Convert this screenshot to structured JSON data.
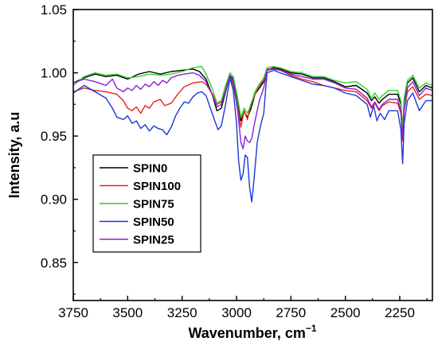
{
  "chart_data": {
    "type": "line",
    "xlabel": "Wavenumber, cm",
    "xlabel_sup": "−1",
    "ylabel": "Intensity, a.u",
    "xlim": [
      3750,
      2100
    ],
    "ylim": [
      0.82,
      1.05
    ],
    "x_reversed": true,
    "xticks": [
      3750,
      3500,
      3250,
      3000,
      2750,
      2500,
      2250
    ],
    "xtick_labels": [
      "3750",
      "3500",
      "3250",
      "3000",
      "2750",
      "2500",
      "2250"
    ],
    "yticks": [
      0.85,
      0.9,
      0.95,
      1.0,
      1.05
    ],
    "ytick_labels": [
      "0.85",
      "0.90",
      "0.95",
      "1.00",
      "1.05"
    ],
    "grid": false,
    "legend_position": "lower-left",
    "series": [
      {
        "name": "SPIN0",
        "color": "#000000",
        "points": [
          [
            3750,
            0.992
          ],
          [
            3700,
            0.996
          ],
          [
            3650,
            0.999
          ],
          [
            3600,
            0.997
          ],
          [
            3550,
            0.998
          ],
          [
            3500,
            0.995
          ],
          [
            3450,
            0.999
          ],
          [
            3400,
            1.001
          ],
          [
            3350,
            0.999
          ],
          [
            3300,
            1.001
          ],
          [
            3250,
            1.002
          ],
          [
            3200,
            1.003
          ],
          [
            3170,
            1.001
          ],
          [
            3140,
            0.995
          ],
          [
            3110,
            0.982
          ],
          [
            3090,
            0.97
          ],
          [
            3070,
            0.972
          ],
          [
            3050,
            0.985
          ],
          [
            3030,
            0.998
          ],
          [
            3015,
            0.995
          ],
          [
            2995,
            0.978
          ],
          [
            2980,
            0.962
          ],
          [
            2965,
            0.969
          ],
          [
            2950,
            0.965
          ],
          [
            2935,
            0.971
          ],
          [
            2915,
            0.983
          ],
          [
            2895,
            0.988
          ],
          [
            2875,
            0.993
          ],
          [
            2860,
            1.002
          ],
          [
            2830,
            1.004
          ],
          [
            2800,
            1.003
          ],
          [
            2750,
            1.0
          ],
          [
            2700,
            0.999
          ],
          [
            2650,
            0.996
          ],
          [
            2600,
            0.996
          ],
          [
            2550,
            0.993
          ],
          [
            2500,
            0.989
          ],
          [
            2450,
            0.99
          ],
          [
            2400,
            0.984
          ],
          [
            2380,
            0.978
          ],
          [
            2365,
            0.981
          ],
          [
            2345,
            0.976
          ],
          [
            2330,
            0.979
          ],
          [
            2300,
            0.983
          ],
          [
            2260,
            0.983
          ],
          [
            2245,
            0.975
          ],
          [
            2237,
            0.951
          ],
          [
            2230,
            0.978
          ],
          [
            2215,
            0.992
          ],
          [
            2190,
            0.996
          ],
          [
            2160,
            0.985
          ],
          [
            2130,
            0.99
          ],
          [
            2100,
            0.988
          ]
        ]
      },
      {
        "name": "SPIN100",
        "color": "#e8231b",
        "points": [
          [
            3750,
            0.985
          ],
          [
            3700,
            0.988
          ],
          [
            3650,
            0.986
          ],
          [
            3600,
            0.985
          ],
          [
            3550,
            0.983
          ],
          [
            3520,
            0.978
          ],
          [
            3500,
            0.972
          ],
          [
            3480,
            0.97
          ],
          [
            3460,
            0.973
          ],
          [
            3440,
            0.968
          ],
          [
            3420,
            0.974
          ],
          [
            3400,
            0.972
          ],
          [
            3380,
            0.977
          ],
          [
            3350,
            0.979
          ],
          [
            3330,
            0.974
          ],
          [
            3300,
            0.976
          ],
          [
            3270,
            0.983
          ],
          [
            3240,
            0.989
          ],
          [
            3200,
            0.992
          ],
          [
            3160,
            0.993
          ],
          [
            3140,
            0.991
          ],
          [
            3110,
            0.983
          ],
          [
            3090,
            0.975
          ],
          [
            3070,
            0.977
          ],
          [
            3050,
            0.989
          ],
          [
            3030,
            0.998
          ],
          [
            3015,
            0.99
          ],
          [
            2995,
            0.972
          ],
          [
            2980,
            0.957
          ],
          [
            2965,
            0.97
          ],
          [
            2950,
            0.963
          ],
          [
            2935,
            0.975
          ],
          [
            2915,
            0.983
          ],
          [
            2895,
            0.99
          ],
          [
            2875,
            0.994
          ],
          [
            2860,
            1.003
          ],
          [
            2830,
            1.003
          ],
          [
            2800,
            1.002
          ],
          [
            2750,
            0.998
          ],
          [
            2700,
            0.995
          ],
          [
            2650,
            0.993
          ],
          [
            2600,
            0.99
          ],
          [
            2550,
            0.988
          ],
          [
            2500,
            0.986
          ],
          [
            2450,
            0.985
          ],
          [
            2400,
            0.978
          ],
          [
            2380,
            0.972
          ],
          [
            2365,
            0.976
          ],
          [
            2345,
            0.97
          ],
          [
            2330,
            0.974
          ],
          [
            2300,
            0.977
          ],
          [
            2260,
            0.976
          ],
          [
            2245,
            0.968
          ],
          [
            2237,
            0.946
          ],
          [
            2230,
            0.97
          ],
          [
            2215,
            0.985
          ],
          [
            2190,
            0.989
          ],
          [
            2160,
            0.979
          ],
          [
            2130,
            0.983
          ],
          [
            2100,
            0.982
          ]
        ]
      },
      {
        "name": "SPIN75",
        "color": "#2fd42b",
        "points": [
          [
            3750,
            0.99
          ],
          [
            3700,
            0.997
          ],
          [
            3650,
            1.0
          ],
          [
            3600,
            0.998
          ],
          [
            3550,
            0.999
          ],
          [
            3500,
            0.996
          ],
          [
            3450,
            0.997
          ],
          [
            3400,
            0.999
          ],
          [
            3350,
            0.998
          ],
          [
            3300,
            0.999
          ],
          [
            3250,
            1.001
          ],
          [
            3200,
            1.004
          ],
          [
            3160,
            1.005
          ],
          [
            3140,
            0.999
          ],
          [
            3110,
            0.987
          ],
          [
            3090,
            0.976
          ],
          [
            3070,
            0.978
          ],
          [
            3050,
            0.99
          ],
          [
            3030,
            1.0
          ],
          [
            3015,
            0.997
          ],
          [
            2995,
            0.98
          ],
          [
            2980,
            0.965
          ],
          [
            2965,
            0.972
          ],
          [
            2950,
            0.968
          ],
          [
            2935,
            0.974
          ],
          [
            2915,
            0.985
          ],
          [
            2895,
            0.991
          ],
          [
            2875,
            0.996
          ],
          [
            2860,
            1.004
          ],
          [
            2830,
            1.005
          ],
          [
            2800,
            1.004
          ],
          [
            2750,
            1.001
          ],
          [
            2700,
            1.0
          ],
          [
            2650,
            0.997
          ],
          [
            2600,
            0.997
          ],
          [
            2550,
            0.994
          ],
          [
            2500,
            0.992
          ],
          [
            2450,
            0.993
          ],
          [
            2400,
            0.987
          ],
          [
            2380,
            0.98
          ],
          [
            2365,
            0.984
          ],
          [
            2345,
            0.979
          ],
          [
            2330,
            0.982
          ],
          [
            2300,
            0.986
          ],
          [
            2260,
            0.986
          ],
          [
            2245,
            0.978
          ],
          [
            2237,
            0.954
          ],
          [
            2230,
            0.98
          ],
          [
            2215,
            0.994
          ],
          [
            2190,
            0.998
          ],
          [
            2160,
            0.988
          ],
          [
            2130,
            0.992
          ],
          [
            2100,
            0.99
          ]
        ]
      },
      {
        "name": "SPIN50",
        "color": "#1d37d6",
        "points": [
          [
            3750,
            0.984
          ],
          [
            3700,
            0.99
          ],
          [
            3650,
            0.985
          ],
          [
            3600,
            0.98
          ],
          [
            3570,
            0.972
          ],
          [
            3550,
            0.965
          ],
          [
            3520,
            0.963
          ],
          [
            3500,
            0.966
          ],
          [
            3480,
            0.96
          ],
          [
            3460,
            0.962
          ],
          [
            3440,
            0.956
          ],
          [
            3420,
            0.959
          ],
          [
            3400,
            0.954
          ],
          [
            3380,
            0.958
          ],
          [
            3360,
            0.956
          ],
          [
            3340,
            0.955
          ],
          [
            3320,
            0.951
          ],
          [
            3300,
            0.957
          ],
          [
            3280,
            0.966
          ],
          [
            3260,
            0.972
          ],
          [
            3240,
            0.977
          ],
          [
            3220,
            0.976
          ],
          [
            3200,
            0.981
          ],
          [
            3180,
            0.984
          ],
          [
            3160,
            0.985
          ],
          [
            3140,
            0.982
          ],
          [
            3120,
            0.972
          ],
          [
            3100,
            0.962
          ],
          [
            3085,
            0.955
          ],
          [
            3070,
            0.958
          ],
          [
            3050,
            0.975
          ],
          [
            3030,
            0.996
          ],
          [
            3015,
            0.986
          ],
          [
            3000,
            0.96
          ],
          [
            2990,
            0.93
          ],
          [
            2980,
            0.915
          ],
          [
            2970,
            0.92
          ],
          [
            2960,
            0.935
          ],
          [
            2950,
            0.933
          ],
          [
            2940,
            0.91
          ],
          [
            2930,
            0.898
          ],
          [
            2920,
            0.915
          ],
          [
            2905,
            0.945
          ],
          [
            2890,
            0.958
          ],
          [
            2875,
            0.968
          ],
          [
            2860,
            1.0
          ],
          [
            2830,
            1.002
          ],
          [
            2800,
            1.0
          ],
          [
            2750,
            0.997
          ],
          [
            2700,
            0.994
          ],
          [
            2650,
            0.991
          ],
          [
            2600,
            0.99
          ],
          [
            2550,
            0.988
          ],
          [
            2500,
            0.984
          ],
          [
            2450,
            0.982
          ],
          [
            2400,
            0.975
          ],
          [
            2385,
            0.965
          ],
          [
            2370,
            0.974
          ],
          [
            2355,
            0.962
          ],
          [
            2340,
            0.968
          ],
          [
            2320,
            0.963
          ],
          [
            2300,
            0.97
          ],
          [
            2260,
            0.97
          ],
          [
            2245,
            0.955
          ],
          [
            2237,
            0.928
          ],
          [
            2230,
            0.96
          ],
          [
            2215,
            0.978
          ],
          [
            2190,
            0.984
          ],
          [
            2160,
            0.97
          ],
          [
            2130,
            0.978
          ],
          [
            2100,
            0.978
          ]
        ]
      },
      {
        "name": "SPIN25",
        "color": "#8a1fd6",
        "points": [
          [
            3750,
            0.992
          ],
          [
            3700,
            0.995
          ],
          [
            3650,
            0.993
          ],
          [
            3600,
            0.99
          ],
          [
            3570,
            0.995
          ],
          [
            3550,
            0.988
          ],
          [
            3520,
            0.985
          ],
          [
            3500,
            0.988
          ],
          [
            3480,
            0.986
          ],
          [
            3460,
            0.99
          ],
          [
            3440,
            0.987
          ],
          [
            3420,
            0.991
          ],
          [
            3400,
            0.989
          ],
          [
            3380,
            0.993
          ],
          [
            3360,
            0.99
          ],
          [
            3340,
            0.994
          ],
          [
            3320,
            0.992
          ],
          [
            3300,
            0.996
          ],
          [
            3270,
            0.998
          ],
          [
            3240,
            0.999
          ],
          [
            3200,
            1.0
          ],
          [
            3170,
            0.998
          ],
          [
            3140,
            0.993
          ],
          [
            3110,
            0.982
          ],
          [
            3090,
            0.973
          ],
          [
            3070,
            0.975
          ],
          [
            3050,
            0.986
          ],
          [
            3030,
            0.998
          ],
          [
            3015,
            0.992
          ],
          [
            2995,
            0.97
          ],
          [
            2980,
            0.945
          ],
          [
            2970,
            0.94
          ],
          [
            2960,
            0.95
          ],
          [
            2950,
            0.946
          ],
          [
            2940,
            0.945
          ],
          [
            2930,
            0.948
          ],
          [
            2915,
            0.962
          ],
          [
            2895,
            0.978
          ],
          [
            2875,
            0.988
          ],
          [
            2860,
            1.002
          ],
          [
            2830,
            1.003
          ],
          [
            2800,
            1.002
          ],
          [
            2750,
            0.999
          ],
          [
            2700,
            0.997
          ],
          [
            2650,
            0.995
          ],
          [
            2600,
            0.995
          ],
          [
            2550,
            0.992
          ],
          [
            2500,
            0.988
          ],
          [
            2450,
            0.987
          ],
          [
            2400,
            0.98
          ],
          [
            2380,
            0.973
          ],
          [
            2365,
            0.977
          ],
          [
            2345,
            0.971
          ],
          [
            2330,
            0.975
          ],
          [
            2300,
            0.979
          ],
          [
            2260,
            0.979
          ],
          [
            2245,
            0.97
          ],
          [
            2237,
            0.948
          ],
          [
            2230,
            0.972
          ],
          [
            2215,
            0.988
          ],
          [
            2190,
            0.993
          ],
          [
            2160,
            0.982
          ],
          [
            2130,
            0.988
          ],
          [
            2100,
            0.986
          ]
        ]
      }
    ]
  }
}
